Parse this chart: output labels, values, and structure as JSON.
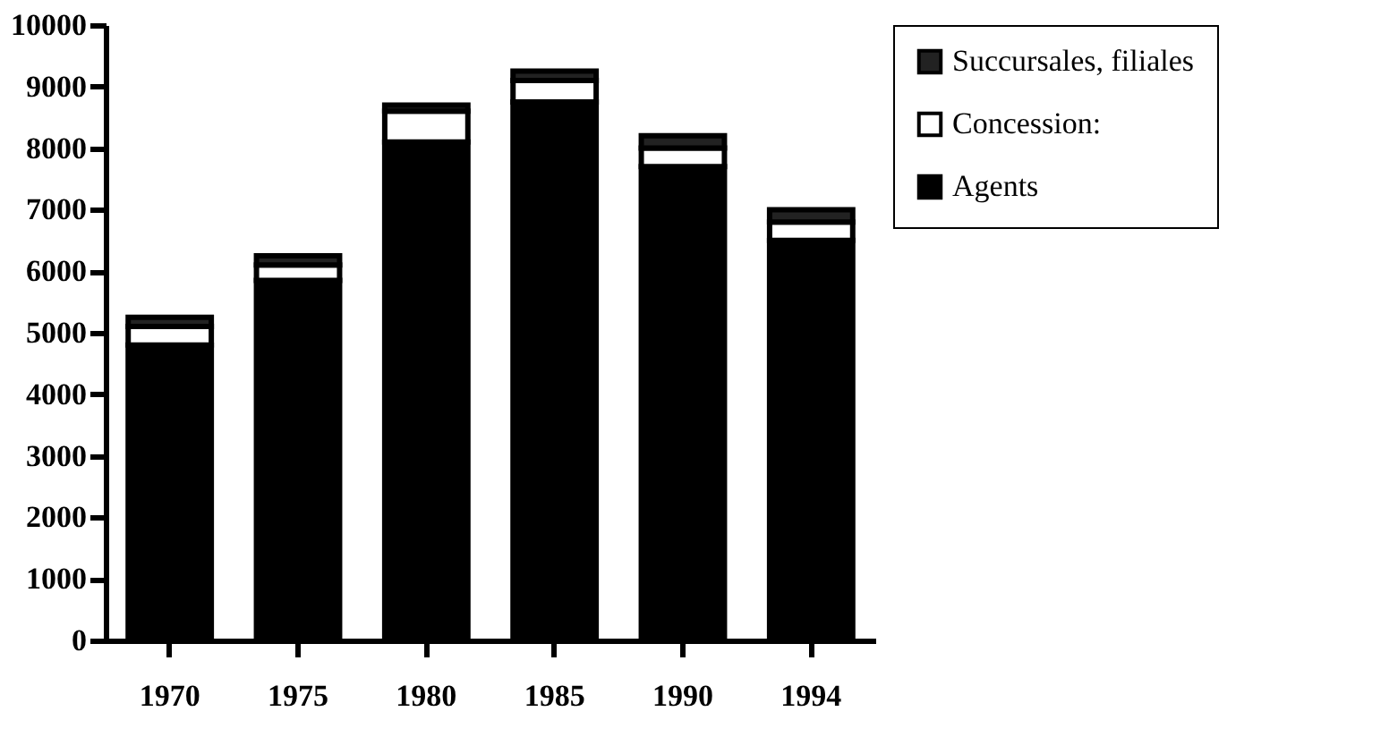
{
  "chart_data": {
    "type": "bar",
    "stacked": true,
    "categories": [
      "1970",
      "1975",
      "1980",
      "1985",
      "1990",
      "1994"
    ],
    "series": [
      {
        "name": "Agents",
        "color": "#000000",
        "values": [
          4800,
          5850,
          8100,
          8750,
          7700,
          6500
        ]
      },
      {
        "name": "Concession:",
        "color": "#ffffff",
        "values": [
          300,
          250,
          500,
          350,
          300,
          300
        ]
      },
      {
        "name": "Succursales, filiales",
        "color": "#222222",
        "values": [
          150,
          150,
          100,
          150,
          200,
          200
        ]
      }
    ],
    "ylim": [
      0,
      10000
    ],
    "yticks": [
      0,
      1000,
      2000,
      3000,
      4000,
      5000,
      6000,
      7000,
      8000,
      9000,
      10000
    ],
    "grid": false,
    "legend": "right"
  }
}
